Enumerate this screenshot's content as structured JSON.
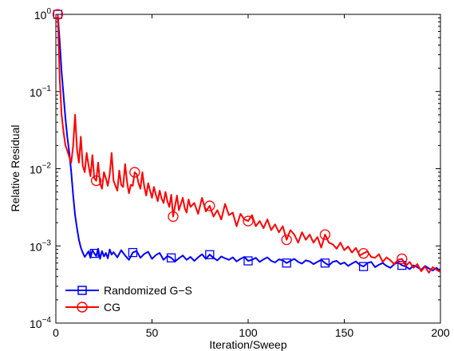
{
  "chart_data": {
    "type": "line",
    "xlabel": "Iteration/Sweep",
    "ylabel": "Relative Residual",
    "xlim": [
      0,
      200
    ],
    "ylim": [
      0.0001,
      1
    ],
    "yscale": "log",
    "grid": false,
    "legend_position": "bottom-left",
    "x_ticks": [
      {
        "value": 0,
        "label": "0"
      },
      {
        "value": 50,
        "label": "50"
      },
      {
        "value": 100,
        "label": "100"
      },
      {
        "value": 150,
        "label": "150"
      },
      {
        "value": 200,
        "label": "200"
      }
    ],
    "y_ticks": [
      {
        "value": 1,
        "base": "10",
        "exp": "0"
      },
      {
        "value": 0.1,
        "base": "10",
        "exp": "−1"
      },
      {
        "value": 0.01,
        "base": "10",
        "exp": "−2"
      },
      {
        "value": 0.001,
        "base": "10",
        "exp": "−3"
      },
      {
        "value": 0.0001,
        "base": "10",
        "exp": "−4"
      }
    ],
    "series": [
      {
        "name": "Randomized G−S",
        "color": "#0000ff",
        "marker": "square",
        "x": [
          1,
          2,
          3,
          4,
          5,
          6,
          7,
          8,
          9,
          10,
          11,
          12,
          13,
          14,
          15,
          16,
          17,
          18,
          19,
          20,
          21,
          22,
          23,
          24,
          25,
          26,
          27,
          28,
          29,
          30,
          32,
          34,
          36,
          38,
          40,
          42,
          44,
          46,
          48,
          50,
          52,
          54,
          56,
          58,
          60,
          62,
          64,
          66,
          68,
          70,
          72,
          74,
          76,
          78,
          80,
          82,
          84,
          86,
          88,
          90,
          92,
          94,
          96,
          98,
          100,
          102,
          104,
          106,
          108,
          110,
          112,
          114,
          116,
          118,
          120,
          122,
          124,
          126,
          128,
          130,
          132,
          134,
          136,
          138,
          140,
          142,
          144,
          146,
          148,
          150,
          152,
          154,
          156,
          158,
          160,
          162,
          164,
          166,
          168,
          170,
          172,
          174,
          176,
          178,
          180,
          182,
          184,
          186,
          188,
          190,
          192,
          194,
          196,
          198,
          200
        ],
        "y": [
          1.0,
          0.45,
          0.18,
          0.09,
          0.045,
          0.025,
          0.016,
          0.009,
          0.0045,
          0.0025,
          0.0017,
          0.0012,
          0.00095,
          0.00082,
          0.00072,
          0.00078,
          0.00085,
          0.0007,
          0.00088,
          0.0008,
          0.00074,
          0.00092,
          0.00068,
          0.00086,
          0.00073,
          0.00081,
          0.00069,
          0.0009,
          0.00077,
          0.00083,
          0.00071,
          0.00088,
          0.00075,
          0.00066,
          0.00082,
          0.00086,
          0.0007,
          0.00079,
          0.00084,
          0.00068,
          0.00076,
          0.00081,
          0.00066,
          0.00074,
          0.0007,
          0.00063,
          0.00069,
          0.00075,
          0.00066,
          0.00072,
          0.00064,
          0.00071,
          0.00078,
          0.00068,
          0.00077,
          0.0007,
          0.00065,
          0.00073,
          0.00069,
          0.00066,
          0.00071,
          0.00063,
          0.00068,
          0.00072,
          0.00064,
          0.00066,
          0.0007,
          0.00062,
          0.00067,
          0.00071,
          0.00064,
          0.00061,
          0.00067,
          0.00065,
          0.0006,
          0.00064,
          0.00068,
          0.00062,
          0.00059,
          0.00065,
          0.00063,
          0.00058,
          0.00062,
          0.00066,
          0.0006,
          0.00056,
          0.00062,
          0.00064,
          0.00058,
          0.00061,
          0.00055,
          0.00059,
          0.00063,
          0.00057,
          0.00054,
          0.0006,
          0.00062,
          0.00053,
          0.00057,
          0.0006,
          0.00055,
          0.00052,
          0.00058,
          0.00061,
          0.00056,
          0.00054,
          0.0005,
          0.00056,
          0.00053,
          0.00049,
          0.00055,
          0.00051,
          0.00048,
          0.00052,
          0.00046
        ],
        "markers_at": [
          1,
          20,
          41,
          61,
          81,
          101,
          121,
          141,
          161,
          181
        ]
      },
      {
        "name": "CG",
        "color": "#ff0000",
        "marker": "circle",
        "x": [
          1,
          2,
          3,
          4,
          5,
          6,
          7,
          8,
          9,
          10,
          11,
          12,
          13,
          14,
          15,
          16,
          17,
          18,
          19,
          20,
          21,
          22,
          23,
          24,
          25,
          26,
          27,
          28,
          29,
          30,
          31,
          32,
          33,
          34,
          35,
          36,
          37,
          38,
          39,
          40,
          41,
          42,
          43,
          44,
          45,
          46,
          47,
          48,
          49,
          50,
          51,
          52,
          53,
          54,
          55,
          56,
          57,
          58,
          59,
          60,
          61,
          62,
          63,
          64,
          65,
          66,
          67,
          68,
          69,
          70,
          72,
          74,
          76,
          78,
          80,
          82,
          84,
          86,
          88,
          90,
          92,
          94,
          96,
          98,
          100,
          102,
          104,
          106,
          108,
          110,
          112,
          114,
          116,
          118,
          120,
          122,
          124,
          126,
          128,
          130,
          132,
          134,
          136,
          138,
          140,
          142,
          144,
          146,
          148,
          150,
          152,
          154,
          156,
          158,
          160,
          162,
          164,
          166,
          168,
          170,
          172,
          174,
          176,
          178,
          180,
          182,
          184,
          186,
          188,
          190,
          192,
          194,
          196,
          198,
          200
        ],
        "y": [
          1.0,
          0.15,
          0.05,
          0.03,
          0.02,
          0.017,
          0.014,
          0.012,
          0.02,
          0.05,
          0.018,
          0.012,
          0.026,
          0.011,
          0.009,
          0.016,
          0.011,
          0.008,
          0.015,
          0.0075,
          0.007,
          0.012,
          0.0065,
          0.0055,
          0.009,
          0.0075,
          0.006,
          0.0085,
          0.016,
          0.007,
          0.006,
          0.0052,
          0.0095,
          0.0062,
          0.0058,
          0.0115,
          0.0068,
          0.0048,
          0.0062,
          0.006,
          0.009,
          0.0085,
          0.0065,
          0.0055,
          0.009,
          0.0058,
          0.0045,
          0.0065,
          0.0052,
          0.0042,
          0.0058,
          0.0046,
          0.0038,
          0.0052,
          0.0041,
          0.0036,
          0.005,
          0.0038,
          0.0032,
          0.0046,
          0.0024,
          0.0033,
          0.0045,
          0.0029,
          0.0035,
          0.0042,
          0.0031,
          0.0027,
          0.004,
          0.0032,
          0.0036,
          0.0026,
          0.0042,
          0.0028,
          0.0033,
          0.0024,
          0.0029,
          0.0022,
          0.0035,
          0.0025,
          0.0027,
          0.0018,
          0.0026,
          0.0022,
          0.0021,
          0.0025,
          0.0018,
          0.0021,
          0.0017,
          0.0022,
          0.0016,
          0.0019,
          0.0015,
          0.0018,
          0.0012,
          0.0016,
          0.0014,
          0.0011,
          0.0015,
          0.0012,
          0.0014,
          0.0011,
          0.0013,
          0.00095,
          0.0014,
          0.0011,
          0.00105,
          0.00092,
          0.0011,
          0.00088,
          0.00098,
          0.00082,
          0.00094,
          0.00075,
          0.0008,
          0.00085,
          0.00072,
          0.0007,
          0.00078,
          0.00062,
          0.00071,
          0.00065,
          0.00058,
          0.00066,
          0.00068,
          0.00055,
          0.00062,
          0.00052,
          0.00058,
          0.00047,
          0.00054,
          0.00045,
          0.00053,
          0.00049,
          0.00046
        ],
        "markers_at": [
          1,
          21,
          41,
          61,
          81,
          101,
          121,
          141,
          161,
          181
        ]
      }
    ]
  }
}
